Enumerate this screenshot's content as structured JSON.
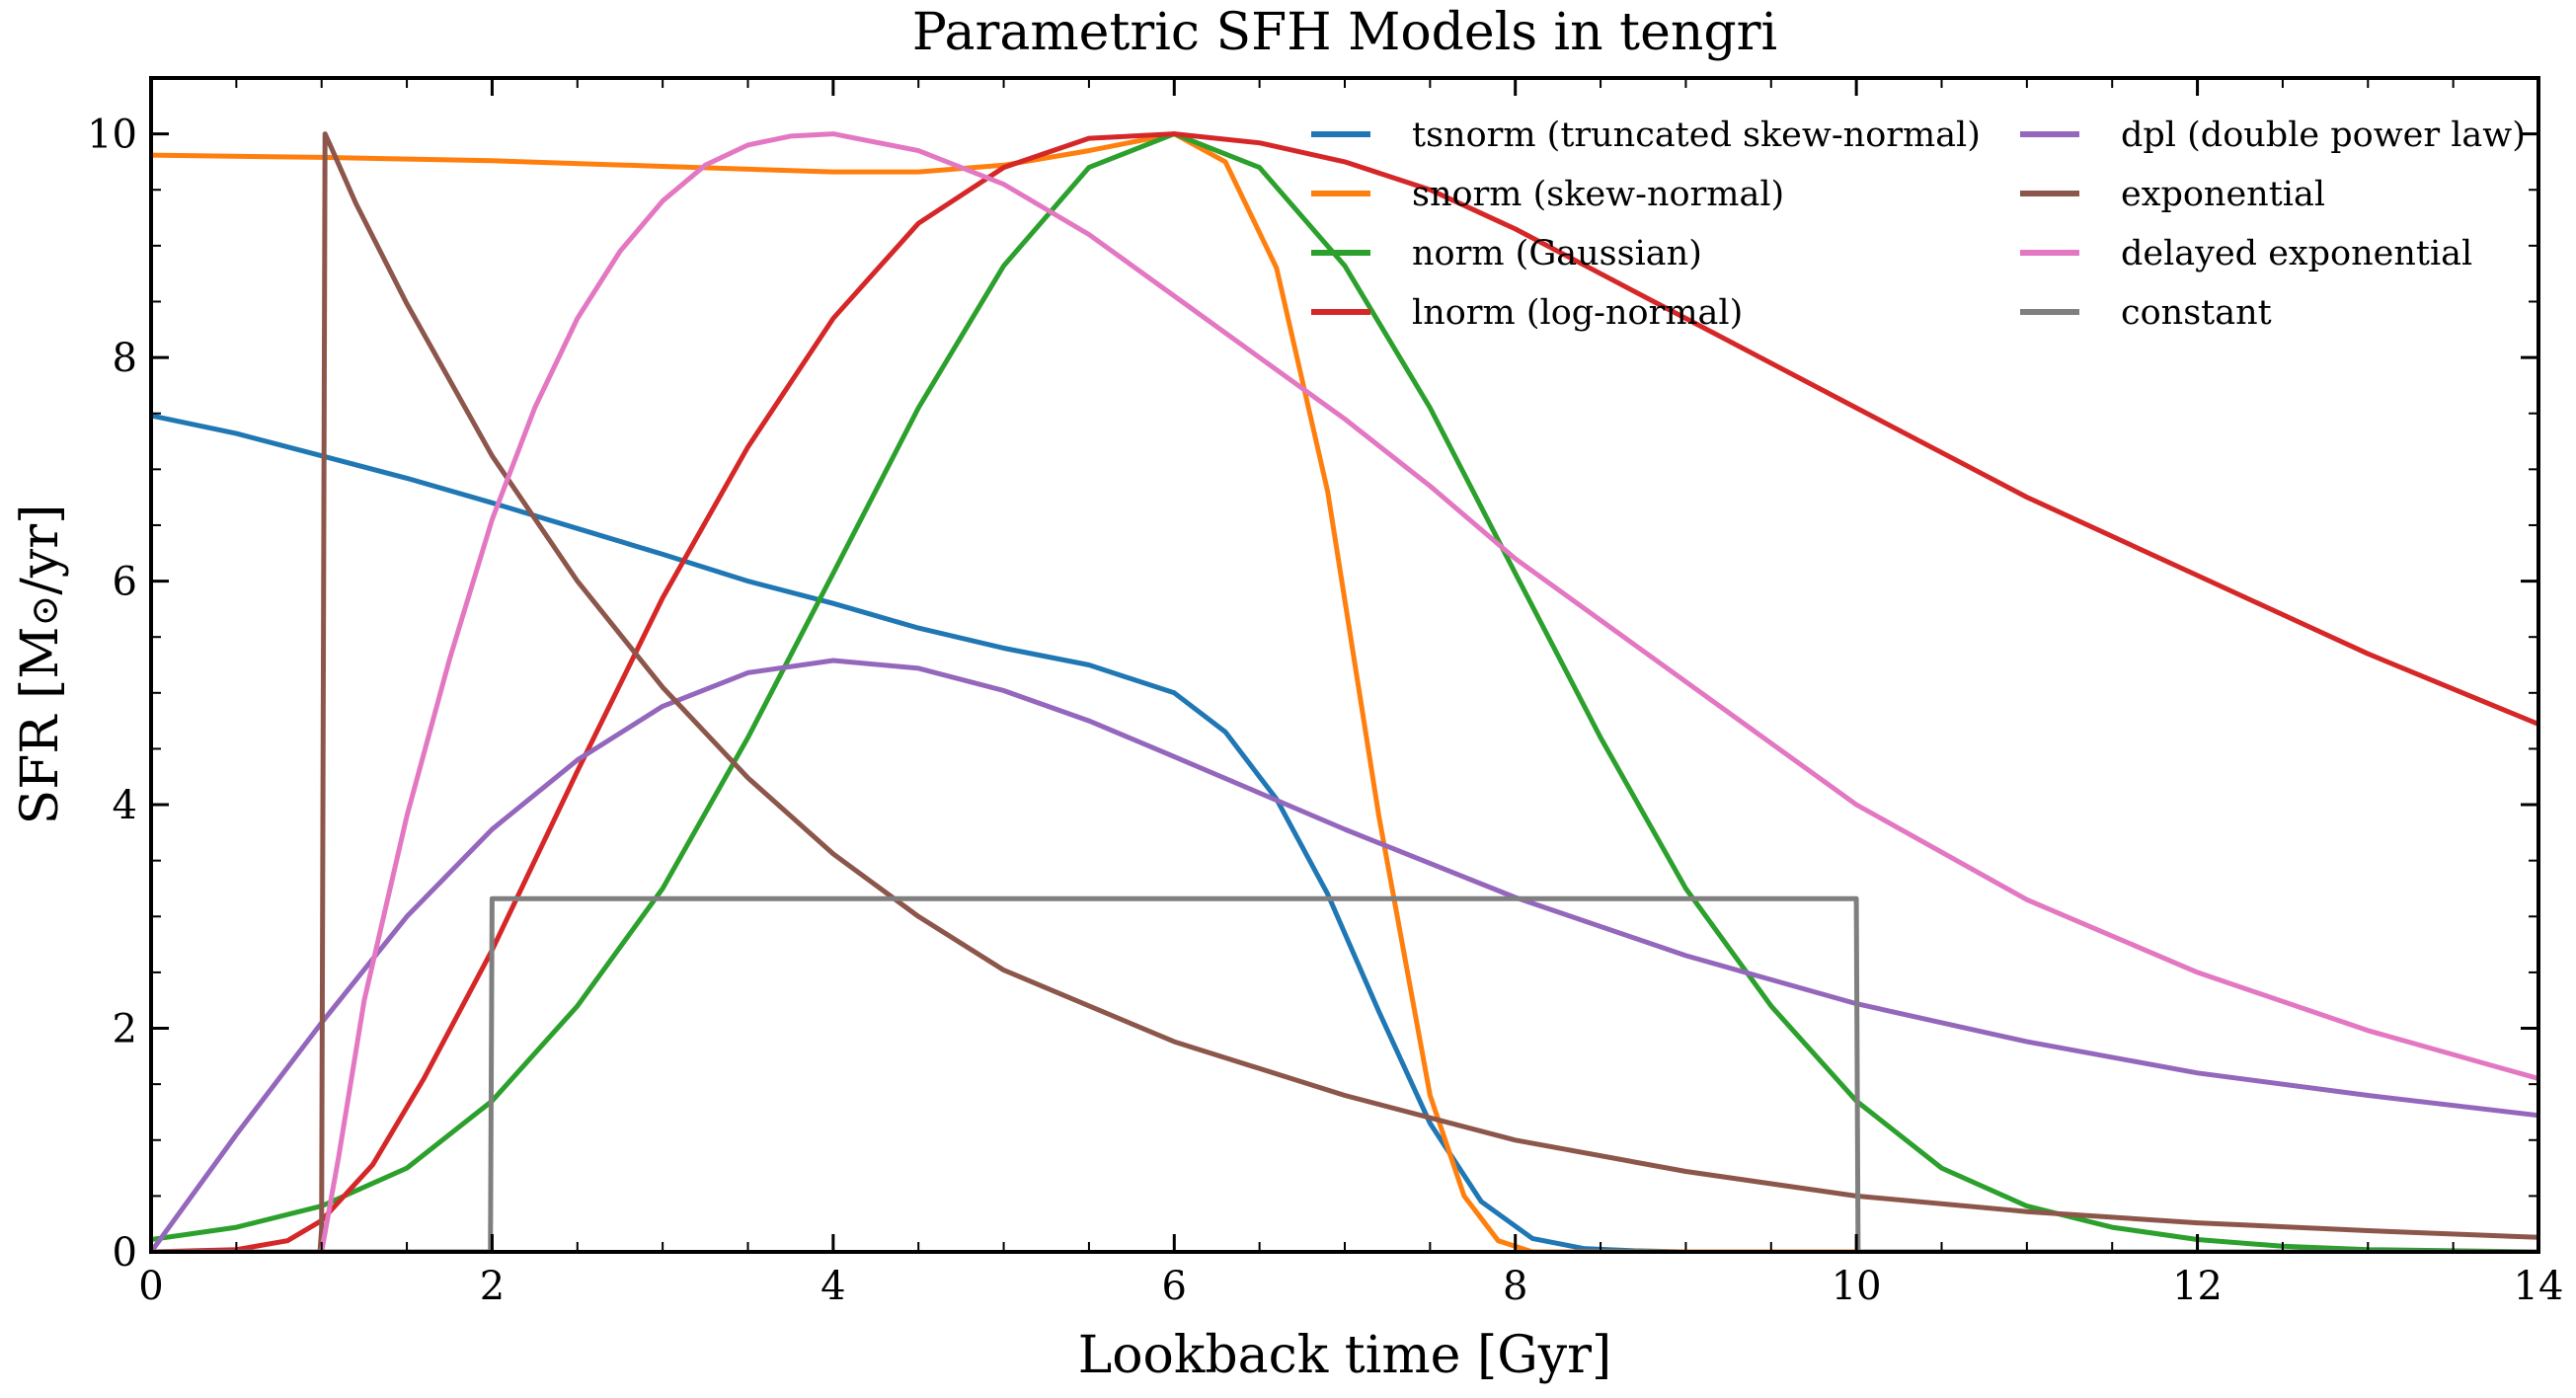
{
  "chart_data": {
    "type": "line",
    "title": "Parametric SFH Models in tengri",
    "xlabel": "Lookback time [Gyr]",
    "ylabel_parts": {
      "before": "SFR [M",
      "symbol": "⊙",
      "after": "/yr]"
    },
    "xlim": [
      0,
      14
    ],
    "ylim": [
      0,
      10.5
    ],
    "xticks": [
      0,
      2,
      4,
      6,
      8,
      10,
      12,
      14
    ],
    "yticks": [
      0,
      2,
      4,
      6,
      8,
      10
    ],
    "grid": false,
    "legend_position": "top-right",
    "legend_columns": 2,
    "series": [
      {
        "name": "tsnorm (truncated skew-normal)",
        "color": "#1f77b4",
        "x": [
          0,
          0.5,
          1,
          1.5,
          2,
          2.5,
          3,
          3.5,
          4,
          4.5,
          5,
          5.5,
          6,
          6.3,
          6.6,
          6.9,
          7.2,
          7.5,
          7.8,
          8.1,
          8.4,
          8.7,
          9,
          10,
          11,
          12,
          13,
          14
        ],
        "y": [
          7.48,
          7.32,
          7.12,
          6.92,
          6.7,
          6.47,
          6.24,
          6.0,
          5.8,
          5.58,
          5.4,
          5.25,
          5.0,
          4.65,
          4.05,
          3.2,
          2.15,
          1.15,
          0.45,
          0.12,
          0.03,
          0.01,
          0,
          0,
          0,
          0,
          0,
          0
        ]
      },
      {
        "name": "snorm (skew-normal)",
        "color": "#ff7f0e",
        "x": [
          0,
          1,
          2,
          3,
          4,
          4.5,
          5,
          5.5,
          6,
          6.3,
          6.6,
          6.9,
          7.2,
          7.5,
          7.7,
          7.9,
          8.1,
          9,
          10,
          11,
          12,
          13,
          14
        ],
        "y": [
          9.81,
          9.79,
          9.76,
          9.71,
          9.66,
          9.66,
          9.72,
          9.85,
          10.0,
          9.75,
          8.8,
          6.8,
          3.9,
          1.4,
          0.5,
          0.1,
          0.0,
          0,
          0,
          0,
          0,
          0,
          0
        ]
      },
      {
        "name": "norm (Gaussian)",
        "color": "#2ca02c",
        "x": [
          0,
          0.5,
          1,
          1.5,
          2,
          2.5,
          3,
          3.5,
          4,
          4.5,
          5,
          5.5,
          6,
          6.5,
          7,
          7.5,
          8,
          8.5,
          9,
          9.5,
          10,
          10.5,
          11,
          11.5,
          12,
          12.5,
          13,
          13.5,
          14
        ],
        "y": [
          0.11,
          0.22,
          0.41,
          0.75,
          1.35,
          2.2,
          3.25,
          4.6,
          6.07,
          7.55,
          8.82,
          9.7,
          10.0,
          9.7,
          8.82,
          7.55,
          6.07,
          4.6,
          3.25,
          2.2,
          1.35,
          0.75,
          0.41,
          0.22,
          0.11,
          0.05,
          0.02,
          0.01,
          0.0
        ]
      },
      {
        "name": "lnorm (log-normal)",
        "color": "#d62728",
        "x": [
          0,
          0.5,
          0.8,
          1,
          1.3,
          1.6,
          2,
          2.5,
          3,
          3.5,
          4,
          4.5,
          5,
          5.5,
          6,
          6.5,
          7,
          7.5,
          8,
          8.5,
          9,
          10,
          11,
          12,
          13,
          14
        ],
        "y": [
          0,
          0.02,
          0.1,
          0.28,
          0.78,
          1.55,
          2.7,
          4.3,
          5.85,
          7.2,
          8.35,
          9.2,
          9.7,
          9.96,
          10.0,
          9.92,
          9.75,
          9.5,
          9.15,
          8.75,
          8.35,
          7.55,
          6.75,
          6.05,
          5.35,
          4.72
        ]
      },
      {
        "name": "dpl (double power law)",
        "color": "#9467bd",
        "x": [
          0,
          0.5,
          1,
          1.5,
          2,
          2.5,
          3,
          3.5,
          4,
          4.5,
          5,
          5.5,
          6,
          7,
          8,
          9,
          10,
          11,
          12,
          13,
          14
        ],
        "y": [
          0,
          1.05,
          2.05,
          3.0,
          3.78,
          4.4,
          4.88,
          5.18,
          5.29,
          5.22,
          5.02,
          4.75,
          4.43,
          3.78,
          3.17,
          2.65,
          2.22,
          1.88,
          1.6,
          1.4,
          1.22
        ]
      },
      {
        "name": "exponential",
        "color": "#8c564b",
        "x": [
          0,
          0.99,
          1.0,
          1.02,
          1.05,
          1.2,
          1.5,
          2,
          2.5,
          3,
          3.5,
          4,
          4.5,
          5,
          6,
          7,
          8,
          9,
          10,
          11,
          12,
          13,
          14
        ],
        "y": [
          0,
          0,
          0.2,
          10.0,
          9.9,
          9.38,
          8.48,
          7.12,
          6.0,
          5.05,
          4.24,
          3.56,
          3.0,
          2.52,
          1.88,
          1.4,
          1.0,
          0.72,
          0.5,
          0.36,
          0.26,
          0.19,
          0.13
        ]
      },
      {
        "name": "delayed exponential",
        "color": "#e377c2",
        "x": [
          0,
          1.0,
          1.1,
          1.25,
          1.5,
          1.75,
          2,
          2.25,
          2.5,
          2.75,
          3,
          3.25,
          3.5,
          3.75,
          4,
          4.5,
          5,
          5.5,
          6,
          6.5,
          7,
          7.5,
          8,
          9,
          10,
          11,
          12,
          13,
          14
        ],
        "y": [
          0,
          0,
          0.85,
          2.25,
          3.9,
          5.3,
          6.55,
          7.55,
          8.35,
          8.95,
          9.4,
          9.72,
          9.9,
          9.98,
          10.0,
          9.85,
          9.55,
          9.1,
          8.55,
          8.0,
          7.45,
          6.85,
          6.2,
          5.1,
          4.0,
          3.15,
          2.5,
          1.98,
          1.55
        ]
      },
      {
        "name": "constant",
        "color": "#7f7f7f",
        "x": [
          0,
          1.99,
          2.0,
          2.02,
          9.98,
          10.0,
          10.01,
          14
        ],
        "y": [
          0,
          0,
          3.16,
          3.16,
          3.16,
          3.16,
          0,
          0
        ]
      }
    ]
  }
}
